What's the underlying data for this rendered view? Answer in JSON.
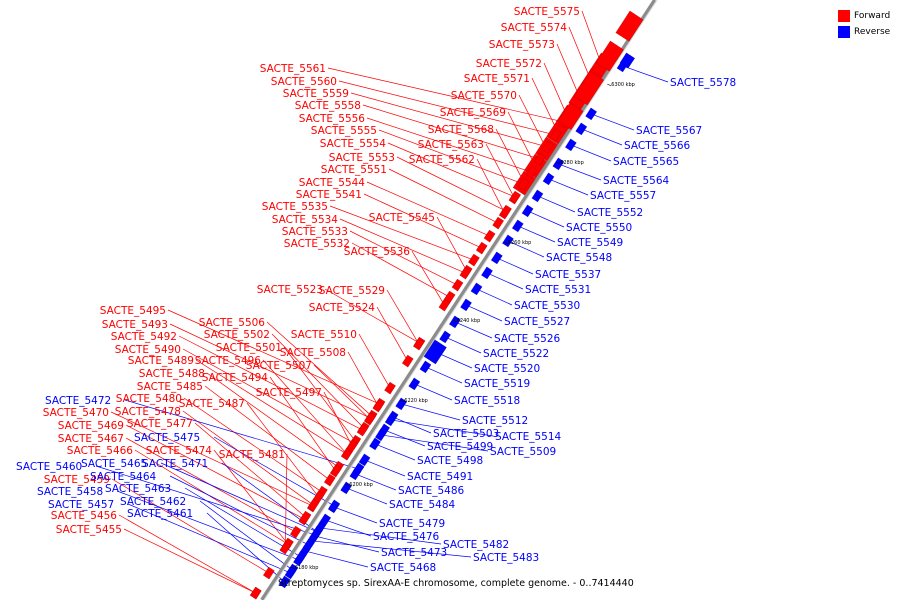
{
  "colors": {
    "forward": "#ff0000",
    "reverse": "#0000ff",
    "backbone": "#8c8c8c"
  },
  "legend": [
    {
      "label": "Forward",
      "color": "#ff0000"
    },
    {
      "label": "Reverse",
      "color": "#0000ff"
    }
  ],
  "caption": "Streptomyces sp. SirexAA-E chromosome, complete genome. - 0..7414440",
  "ticks": [
    "6180 kbp",
    "6200 kbp",
    "6220 kbp",
    "6240 kbp",
    "6260 kbp",
    "6280 kbp",
    "6300 kbp"
  ],
  "forward_genes": [
    "SACTE_5575",
    "SACTE_5574",
    "SACTE_5573",
    "SACTE_5572",
    "SACTE_5571",
    "SACTE_5570",
    "SACTE_5569",
    "SACTE_5568",
    "SACTE_5563",
    "SACTE_5562",
    "SACTE_5561",
    "SACTE_5560",
    "SACTE_5559",
    "SACTE_5558",
    "SACTE_5556",
    "SACTE_5555",
    "SACTE_5554",
    "SACTE_5553",
    "SACTE_5551",
    "SACTE_5544",
    "SACTE_5541",
    "SACTE_5535",
    "SACTE_5545",
    "SACTE_5534",
    "SACTE_5533",
    "SACTE_5532",
    "SACTE_5536",
    "SACTE_5523",
    "SACTE_5529",
    "SACTE_5524",
    "SACTE_5495",
    "SACTE_5506",
    "SACTE_5493",
    "SACTE_5502",
    "SACTE_5510",
    "SACTE_5492",
    "SACTE_5501",
    "SACTE_5508",
    "SACTE_5490",
    "SACTE_5496",
    "SACTE_5507",
    "SACTE_5489",
    "SACTE_5488",
    "SACTE_5494",
    "SACTE_5485",
    "SACTE_5497",
    "SACTE_5480",
    "SACTE_5487",
    "SACTE_5470",
    "SACTE_5478",
    "SACTE_5469",
    "SACTE_5477",
    "SACTE_5467",
    "SACTE_5466",
    "SACTE_5474",
    "SACTE_5481",
    "SACTE_5459",
    "SACTE_5456",
    "SACTE_5455"
  ],
  "reverse_genes": [
    "SACTE_5578",
    "SACTE_5567",
    "SACTE_5566",
    "SACTE_5565",
    "SACTE_5564",
    "SACTE_5557",
    "SACTE_5552",
    "SACTE_5550",
    "SACTE_5549",
    "SACTE_5548",
    "SACTE_5537",
    "SACTE_5531",
    "SACTE_5530",
    "SACTE_5527",
    "SACTE_5526",
    "SACTE_5522",
    "SACTE_5520",
    "SACTE_5519",
    "SACTE_5518",
    "SACTE_5512",
    "SACTE_5503",
    "SACTE_5514",
    "SACTE_5499",
    "SACTE_5509",
    "SACTE_5498",
    "SACTE_5491",
    "SACTE_5486",
    "SACTE_5484",
    "SACTE_5479",
    "SACTE_5476",
    "SACTE_5482",
    "SACTE_5473",
    "SACTE_5483",
    "SACTE_5468",
    "SACTE_5472",
    "SACTE_5475",
    "SACTE_5460",
    "SACTE_5465",
    "SACTE_5471",
    "SACTE_5464",
    "SACTE_5458",
    "SACTE_5463",
    "SACTE_5462",
    "SACTE_5457",
    "SACTE_5461"
  ]
}
